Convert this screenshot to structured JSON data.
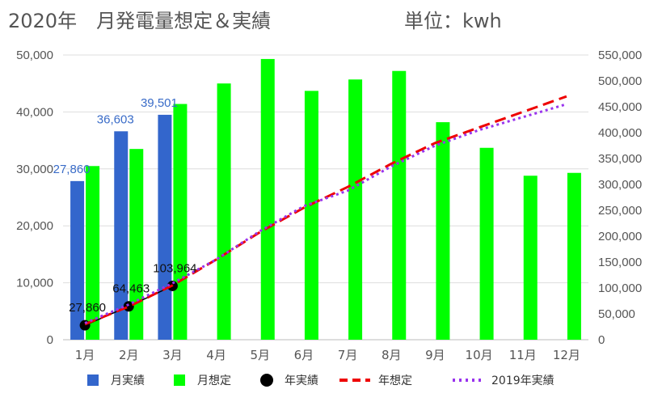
{
  "title": "2020年　月発電量想定＆実績",
  "unit_label": "単位：kwh",
  "chart_data": {
    "type": "bar",
    "categories": [
      "1月",
      "2月",
      "3月",
      "4月",
      "5月",
      "6月",
      "7月",
      "8月",
      "9月",
      "10月",
      "11月",
      "12月"
    ],
    "left_axis": {
      "ylim": [
        0,
        50000
      ],
      "ticks": [
        "0",
        "10,000",
        "20,000",
        "30,000",
        "40,000",
        "50,000"
      ]
    },
    "right_axis": {
      "ylim": [
        0,
        550000
      ],
      "ticks": [
        "0",
        "50,000",
        "100,000",
        "150,000",
        "200,000",
        "250,000",
        "300,000",
        "350,000",
        "400,000",
        "450,000",
        "500,000",
        "550,000"
      ]
    },
    "grid": true,
    "legend_position": "bottom",
    "series": [
      {
        "name": "月実績",
        "type": "bar",
        "axis": "left",
        "color": "#3366cc",
        "values": [
          27860,
          36603,
          39501,
          null,
          null,
          null,
          null,
          null,
          null,
          null,
          null,
          null
        ],
        "labels": [
          "27,860",
          "36,603",
          "39,501"
        ]
      },
      {
        "name": "月想定",
        "type": "bar",
        "axis": "left",
        "color": "#00ff00",
        "values": [
          30500,
          33500,
          41400,
          45000,
          49300,
          43700,
          45700,
          47200,
          38200,
          33700,
          28800,
          29300
        ]
      },
      {
        "name": "年実績",
        "type": "line",
        "axis": "right",
        "color": "#000000",
        "values": [
          27860,
          64463,
          103964,
          null,
          null,
          null,
          null,
          null,
          null,
          null,
          null,
          null
        ],
        "labels": [
          "27,860",
          "64,463",
          "103,964"
        ]
      },
      {
        "name": "年想定",
        "type": "line",
        "axis": "right",
        "color": "#ee0000",
        "dash": "dashed",
        "values": [
          30000,
          64000,
          105000,
          155000,
          208000,
          255000,
          295000,
          340000,
          380000,
          410000,
          440000,
          470000
        ]
      },
      {
        "name": "2019年実績",
        "type": "line",
        "axis": "right",
        "color": "#9933ee",
        "dash": "dotted",
        "values": [
          32000,
          68000,
          109000,
          155000,
          210000,
          258000,
          288000,
          335000,
          375000,
          405000,
          430000,
          455000
        ]
      }
    ]
  }
}
